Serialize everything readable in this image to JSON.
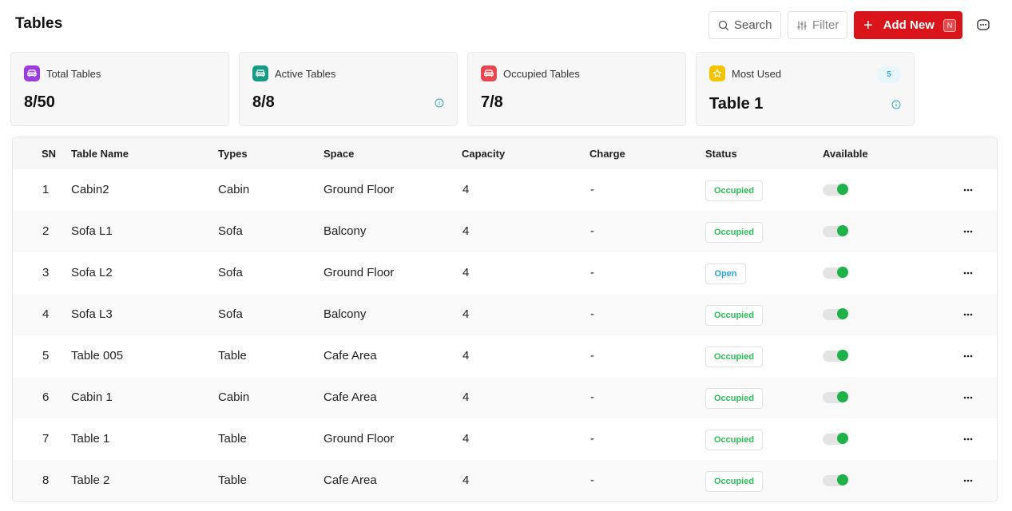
{
  "page": {
    "title": "Tables"
  },
  "toolbar": {
    "search_label": "Search",
    "filter_label": "Filter",
    "add_label": "Add New",
    "add_shortcut": "N"
  },
  "stats": [
    {
      "label": "Total Tables",
      "value": "8/50",
      "icon": "sofa-icon",
      "color": "#9b3ce0"
    },
    {
      "label": "Active Tables",
      "value": "8/8",
      "icon": "sofa-icon",
      "color": "#169c84"
    },
    {
      "label": "Occupied Tables",
      "value": "7/8",
      "icon": "sofa-icon",
      "color": "#e8474f"
    },
    {
      "label": "Most Used",
      "value": "Table 1",
      "icon": "star-icon",
      "color": "#f5c400",
      "badge": "5"
    }
  ],
  "table": {
    "columns": [
      "SN",
      "Table Name",
      "Types",
      "Space",
      "Capacity",
      "Charge",
      "Status",
      "Available"
    ],
    "rows": [
      {
        "sn": "1",
        "name": "Cabin2",
        "type": "Cabin",
        "space": "Ground Floor",
        "capacity": "4",
        "charge": "-",
        "status": "Occupied"
      },
      {
        "sn": "2",
        "name": "Sofa L1",
        "type": "Sofa",
        "space": "Balcony",
        "capacity": "4",
        "charge": "-",
        "status": "Occupied"
      },
      {
        "sn": "3",
        "name": "Sofa L2",
        "type": "Sofa",
        "space": "Ground Floor",
        "capacity": "4",
        "charge": "-",
        "status": "Open"
      },
      {
        "sn": "4",
        "name": "Sofa L3",
        "type": "Sofa",
        "space": "Balcony",
        "capacity": "4",
        "charge": "-",
        "status": "Occupied"
      },
      {
        "sn": "5",
        "name": "Table 005",
        "type": "Table",
        "space": "Cafe Area",
        "capacity": "4",
        "charge": "-",
        "status": "Occupied"
      },
      {
        "sn": "6",
        "name": "Cabin 1",
        "type": "Cabin",
        "space": "Cafe Area",
        "capacity": "4",
        "charge": "-",
        "status": "Occupied"
      },
      {
        "sn": "7",
        "name": "Table 1",
        "type": "Table",
        "space": "Ground Floor",
        "capacity": "4",
        "charge": "-",
        "status": "Occupied"
      },
      {
        "sn": "8",
        "name": "Table 2",
        "type": "Table",
        "space": "Cafe Area",
        "capacity": "4",
        "charge": "-",
        "status": "Occupied"
      }
    ]
  },
  "colors": {
    "accent": "#d9141b",
    "status_occupied": "#2bbf55",
    "status_open": "#2aa3d3",
    "toggle_on": "#1fb24a"
  }
}
